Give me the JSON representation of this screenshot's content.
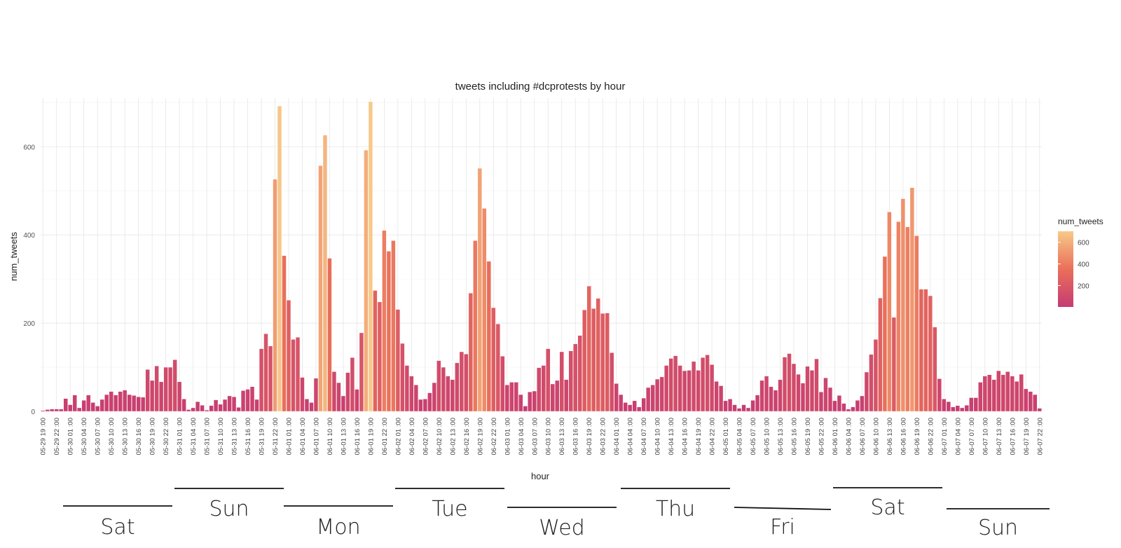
{
  "chart_data": {
    "type": "bar",
    "title": "tweets including #dcprotests by hour",
    "xlabel": "hour",
    "ylabel": "num_tweets",
    "ylim": [
      0,
      710
    ],
    "yticks": [
      0,
      200,
      400,
      600
    ],
    "grid": true,
    "start_time": "2020-05-29 19:00",
    "x_tick_every_hours": 3,
    "x_tick_labels": [
      "05-29 19 :00",
      "05-29 22 :00",
      "05-30 01 :00",
      "05-30 04 :00",
      "05-30 07 :00",
      "05-30 10 :00",
      "05-30 13 :00",
      "05-30 16 :00",
      "05-30 19 :00",
      "05-30 22 :00",
      "05-31 01 :00",
      "05-31 04 :00",
      "05-31 07 :00",
      "05-31 10 :00",
      "05-31 13 :00",
      "05-31 16 :00",
      "05-31 19 :00",
      "05-31 22 :00",
      "06-01 01 :00",
      "06-01 04 :00",
      "06-01 07 :00",
      "06-01 10 :00",
      "06-01 13 :00",
      "06-01 16 :00",
      "06-01 19 :00",
      "06-01 22 :00",
      "06-02 01 :00",
      "06-02 04 :00",
      "06-02 07 :00",
      "06-02 10 :00",
      "06-02 13 :00",
      "06-02 16 :00",
      "06-02 19 :00",
      "06-02 22 :00",
      "06-03 01 :00",
      "06-03 04 :00",
      "06-03 07 :00",
      "06-03 10 :00",
      "06-03 13 :00",
      "06-03 16 :00",
      "06-03 19 :00",
      "06-03 22 :00",
      "06-04 01 :00",
      "06-04 04 :00",
      "06-04 07 :00",
      "06-04 10 :00",
      "06-04 13 :00",
      "06-04 16 :00",
      "06-04 19 :00",
      "06-04 22 :00",
      "06-05 01 :00",
      "06-05 04 :00",
      "06-05 07 :00",
      "06-05 10 :00",
      "06-05 13 :00",
      "06-05 16 :00",
      "06-05 19 :00",
      "06-05 22 :00",
      "06-06 01 :00",
      "06-06 04 :00",
      "06-06 07 :00",
      "06-06 10 :00",
      "06-06 13 :00",
      "06-06 16 :00",
      "06-06 19 :00",
      "06-06 22 :00",
      "06-07 01 :00",
      "06-07 04 :00",
      "06-07 07 :00",
      "06-07 10 :00",
      "06-07 13 :00",
      "06-07 16 :00",
      "06-07 19 :00",
      "06-07 22 :00"
    ],
    "values": [
      2,
      4,
      5,
      5,
      5,
      29,
      15,
      37,
      8,
      25,
      37,
      20,
      12,
      27,
      38,
      45,
      37,
      45,
      48,
      38,
      36,
      33,
      32,
      95,
      70,
      103,
      67,
      100,
      100,
      117,
      67,
      28,
      4,
      8,
      22,
      14,
      3,
      13,
      26,
      16,
      27,
      35,
      33,
      9,
      47,
      50,
      56,
      27,
      142,
      176,
      148,
      526,
      692,
      353,
      252,
      163,
      168,
      77,
      28,
      20,
      75,
      557,
      626,
      347,
      90,
      65,
      35,
      88,
      122,
      50,
      178,
      592,
      702,
      274,
      248,
      410,
      363,
      387,
      231,
      154,
      104,
      80,
      60,
      27,
      28,
      42,
      65,
      115,
      100,
      80,
      72,
      110,
      135,
      130,
      268,
      387,
      551,
      460,
      340,
      235,
      198,
      125,
      60,
      66,
      66,
      38,
      12,
      44,
      46,
      99,
      104,
      142,
      62,
      70,
      135,
      72,
      137,
      153,
      172,
      230,
      284,
      233,
      256,
      222,
      223,
      133,
      63,
      38,
      20,
      15,
      24,
      10,
      30,
      54,
      60,
      73,
      78,
      104,
      120,
      126,
      104,
      92,
      93,
      113,
      93,
      122,
      128,
      106,
      68,
      58,
      24,
      28,
      15,
      7,
      15,
      8,
      25,
      37,
      70,
      80,
      56,
      48,
      72,
      123,
      131,
      108,
      84,
      64,
      102,
      93,
      119,
      44,
      76,
      54,
      24,
      36,
      18,
      5,
      10,
      25,
      35,
      89,
      129,
      163,
      257,
      351,
      452,
      213,
      430,
      482,
      418,
      507,
      398,
      277,
      277,
      262,
      191,
      74,
      28,
      22,
      10,
      13,
      8,
      14,
      31,
      31,
      66,
      80,
      83,
      72,
      92,
      83,
      90,
      80,
      68,
      84,
      51,
      45,
      38,
      7
    ]
  },
  "legend": {
    "title": "num_tweets",
    "ticks": [
      200,
      400,
      600
    ],
    "gradient_low": "#c53b72",
    "gradient_mid": "#ea6f5a",
    "gradient_high": "#f7c98a"
  },
  "day_annotations": [
    {
      "label": "Sat"
    },
    {
      "label": "Sun"
    },
    {
      "label": "Mon"
    },
    {
      "label": "Tue"
    },
    {
      "label": "Wed"
    },
    {
      "label": "Thu"
    },
    {
      "label": "Fri"
    },
    {
      "label": "Sat"
    },
    {
      "label": "Sun"
    }
  ]
}
